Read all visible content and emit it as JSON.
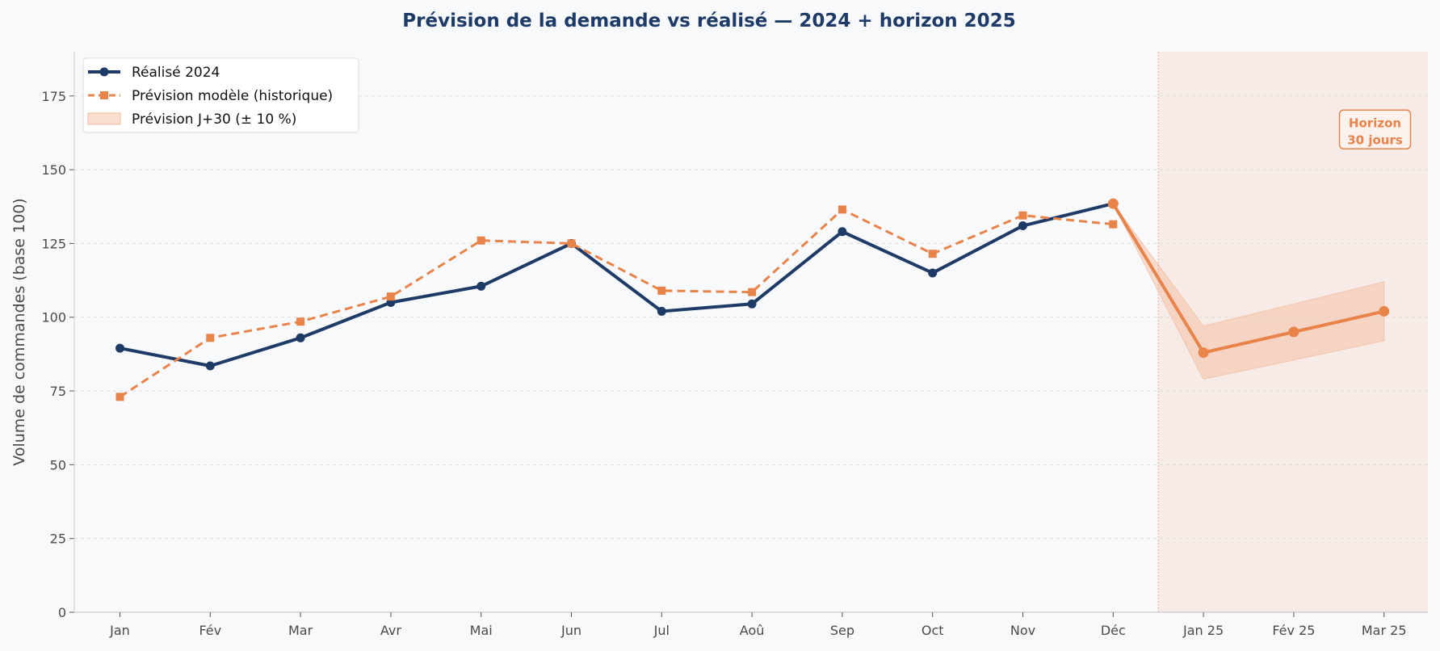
{
  "chart_data": {
    "type": "line",
    "title": "Prévision de la demande vs réalisé — 2024 + horizon 2025",
    "xlabel": "",
    "ylabel": "Volume de commandes (base 100)",
    "ylim": [
      0,
      190
    ],
    "yticks": [
      0,
      25,
      50,
      75,
      100,
      125,
      150,
      175
    ],
    "categories": [
      "Jan",
      "Fév",
      "Mar",
      "Avr",
      "Mai",
      "Jun",
      "Jul",
      "Aoû",
      "Sep",
      "Oct",
      "Nov",
      "Déc",
      "Jan 25",
      "Fév 25",
      "Mar 25"
    ],
    "grid": "horizontal-dashed",
    "legend_position": "top-left",
    "series": [
      {
        "name": "Réalisé 2024",
        "style": "solid-circle",
        "color": "#1e3a66",
        "values": [
          89.5,
          83.5,
          93,
          105,
          110.5,
          125,
          102,
          104.5,
          129,
          115,
          131,
          138.5,
          null,
          null,
          null
        ]
      },
      {
        "name": "Prévision modèle (historique)",
        "style": "dashed-square",
        "color": "#e8834a",
        "values": [
          73,
          93,
          98.5,
          107,
          126,
          125,
          109,
          108.5,
          136.5,
          121.5,
          134.5,
          131.5,
          null,
          null,
          null
        ]
      },
      {
        "name": "",
        "style": "solid-circle-forecast",
        "color": "#e8834a",
        "values": [
          null,
          null,
          null,
          null,
          null,
          null,
          null,
          null,
          null,
          null,
          null,
          138.5,
          88,
          95,
          102
        ]
      }
    ],
    "band": {
      "name": "Prévision J+30 (± 10 %)",
      "color": "#f4b899",
      "lower": [
        null,
        null,
        null,
        null,
        null,
        null,
        null,
        null,
        null,
        null,
        null,
        138.5,
        79,
        85.5,
        92
      ],
      "upper": [
        null,
        null,
        null,
        null,
        null,
        null,
        null,
        null,
        null,
        null,
        null,
        138.5,
        97,
        104.5,
        112
      ]
    },
    "horizon_start_index": 11.5,
    "annotation": {
      "lines": [
        "Horizon",
        "30 jours"
      ],
      "x_index": 13.9,
      "y": 162
    }
  }
}
